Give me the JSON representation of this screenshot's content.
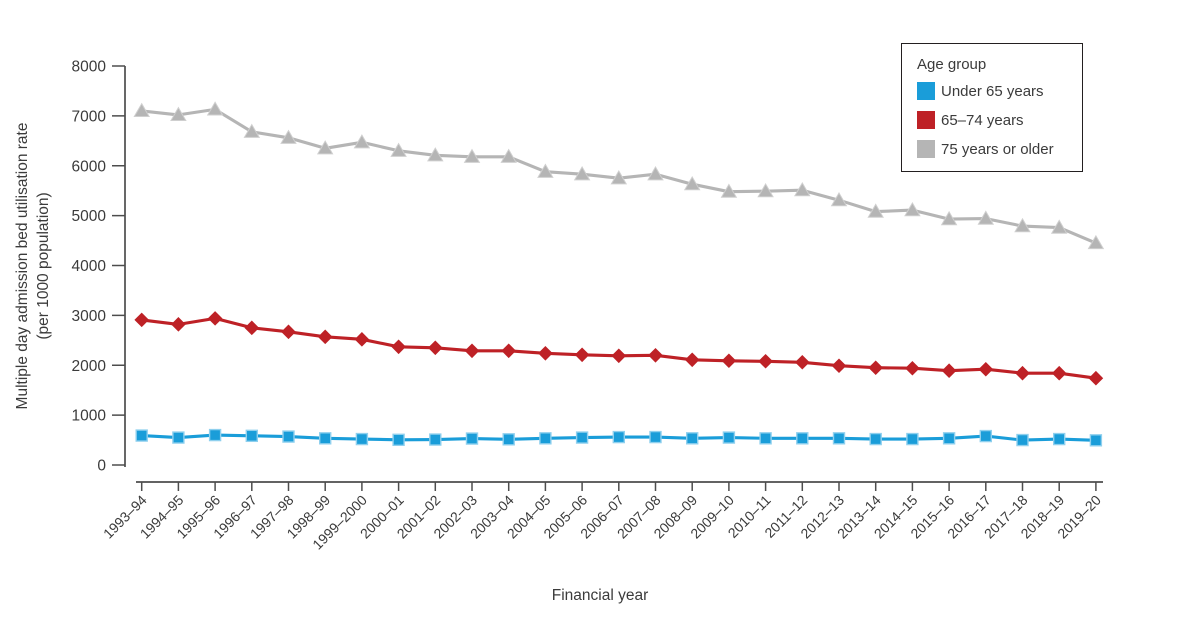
{
  "chart_data": {
    "type": "line",
    "title": "",
    "xlabel": "Financial year",
    "ylabel_lines": [
      "Multiple day admission bed utilisation rate",
      "(per 1000 population)"
    ],
    "ylim": [
      0,
      8000
    ],
    "yticks": [
      0,
      1000,
      2000,
      3000,
      4000,
      5000,
      6000,
      7000,
      8000
    ],
    "grid": false,
    "legend": {
      "title": "Age group",
      "position": "top-right"
    },
    "categories": [
      "1993–94",
      "1994–95",
      "1995–96",
      "1996–97",
      "1997–98",
      "1998–99",
      "1999–2000",
      "2000–01",
      "2001–02",
      "2002–03",
      "2003–04",
      "2004–05",
      "2005–06",
      "2006–07",
      "2007–08",
      "2008–09",
      "2009–10",
      "2010–11",
      "2011–12",
      "2012–13",
      "2013–14",
      "2014–15",
      "2015–16",
      "2016–17",
      "2017–18",
      "2018–19",
      "2019–20"
    ],
    "series": [
      {
        "name": "Under 65 years",
        "marker": "square",
        "color": "#1A9DD9",
        "marker_edge": "#8FD0EE",
        "values": [
          590,
          550,
          600,
          585,
          570,
          535,
          520,
          505,
          510,
          530,
          515,
          535,
          550,
          560,
          560,
          535,
          550,
          535,
          535,
          535,
          520,
          520,
          535,
          580,
          500,
          520,
          495
        ]
      },
      {
        "name": "65–74 years",
        "marker": "diamond",
        "color": "#BE2126",
        "marker_edge": "#BE2126",
        "values": [
          2910,
          2820,
          2940,
          2750,
          2670,
          2570,
          2520,
          2370,
          2350,
          2290,
          2290,
          2240,
          2210,
          2190,
          2200,
          2110,
          2090,
          2080,
          2060,
          1990,
          1950,
          1940,
          1890,
          1920,
          1840,
          1840,
          1740
        ]
      },
      {
        "name": "75 years or older",
        "marker": "triangle",
        "color": "#B5B5B5",
        "marker_edge": "#CFCFCF",
        "values": [
          7100,
          7020,
          7130,
          6680,
          6560,
          6350,
          6470,
          6300,
          6210,
          6180,
          6180,
          5880,
          5830,
          5750,
          5830,
          5630,
          5480,
          5490,
          5510,
          5310,
          5080,
          5110,
          4930,
          4940,
          4790,
          4760,
          4450
        ]
      }
    ]
  },
  "colors": {
    "axis": "#4d4d4d",
    "text": "#3b3b3b",
    "background": "#ffffff"
  }
}
